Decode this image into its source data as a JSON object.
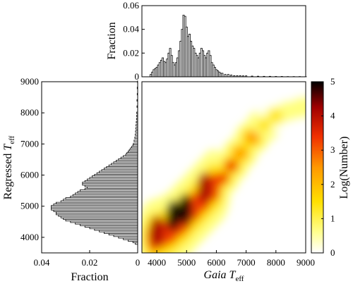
{
  "chart_data": [
    {
      "type": "bar",
      "panel": "top-histogram",
      "ylabel": "Fraction",
      "xlim": [
        3500,
        9000
      ],
      "ylim": [
        0,
        0.06
      ],
      "yticks": [
        "0",
        "0.02",
        "0.04",
        "0.06"
      ],
      "bin_width": 50,
      "x": [
        3800,
        3850,
        3900,
        3950,
        4000,
        4050,
        4100,
        4150,
        4200,
        4250,
        4300,
        4350,
        4400,
        4450,
        4500,
        4550,
        4600,
        4650,
        4700,
        4750,
        4800,
        4850,
        4900,
        4950,
        5000,
        5050,
        5100,
        5150,
        5200,
        5250,
        5300,
        5350,
        5400,
        5450,
        5500,
        5550,
        5600,
        5650,
        5700,
        5750,
        5800,
        5850,
        5900,
        5950,
        6000,
        6050,
        6100,
        6150,
        6200,
        6300,
        6400,
        6500,
        6600,
        6700,
        6800,
        6900,
        7000,
        7200,
        7400,
        7600,
        7800,
        8000,
        8200,
        8400,
        8600,
        8800,
        9000
      ],
      "values": [
        0.002,
        0.004,
        0.006,
        0.007,
        0.008,
        0.01,
        0.012,
        0.014,
        0.016,
        0.013,
        0.012,
        0.015,
        0.02,
        0.024,
        0.018,
        0.012,
        0.01,
        0.012,
        0.016,
        0.022,
        0.03,
        0.04,
        0.052,
        0.051,
        0.042,
        0.034,
        0.036,
        0.03,
        0.026,
        0.024,
        0.02,
        0.018,
        0.016,
        0.02,
        0.024,
        0.022,
        0.018,
        0.016,
        0.02,
        0.022,
        0.018,
        0.012,
        0.01,
        0.008,
        0.006,
        0.005,
        0.004,
        0.003,
        0.003,
        0.002,
        0.002,
        0.0015,
        0.001,
        0.001,
        0.001,
        0.0008,
        0.0008,
        0.0006,
        0.0005,
        0.0004,
        0.0004,
        0.0003,
        0.0003,
        0.0002,
        0.0002,
        0.0002,
        0.0001
      ]
    },
    {
      "type": "bar",
      "orientation": "horizontal",
      "panel": "left-histogram",
      "xlabel": "Fraction",
      "ylabel": "Regressed T_eff",
      "xlim": [
        0.04,
        0
      ],
      "ylim": [
        3500,
        9000
      ],
      "xticks": [
        "0.04",
        "0.02",
        "0"
      ],
      "bin_width": 50,
      "y": [
        3800,
        3850,
        3900,
        3950,
        4000,
        4050,
        4100,
        4150,
        4200,
        4250,
        4300,
        4350,
        4400,
        4450,
        4500,
        4550,
        4600,
        4650,
        4700,
        4750,
        4800,
        4850,
        4900,
        4950,
        5000,
        5050,
        5100,
        5150,
        5200,
        5250,
        5300,
        5350,
        5400,
        5450,
        5500,
        5550,
        5600,
        5650,
        5700,
        5750,
        5800,
        5850,
        5900,
        5950,
        6000,
        6050,
        6100,
        6150,
        6200,
        6250,
        6300,
        6350,
        6400,
        6450,
        6500,
        6550,
        6600,
        6650,
        6700,
        6750,
        6800,
        6850,
        6900,
        6950,
        7000,
        7100,
        7200,
        7300,
        7400,
        7500,
        7600,
        7700,
        7800,
        7900,
        8000,
        8200,
        8400,
        8600,
        8800,
        9000
      ],
      "values": [
        0.001,
        0.002,
        0.004,
        0.006,
        0.008,
        0.01,
        0.012,
        0.014,
        0.016,
        0.018,
        0.02,
        0.022,
        0.024,
        0.026,
        0.028,
        0.03,
        0.031,
        0.032,
        0.033,
        0.034,
        0.034,
        0.035,
        0.036,
        0.036,
        0.036,
        0.035,
        0.034,
        0.032,
        0.031,
        0.03,
        0.028,
        0.027,
        0.026,
        0.025,
        0.024,
        0.022,
        0.021,
        0.022,
        0.023,
        0.023,
        0.022,
        0.021,
        0.02,
        0.019,
        0.018,
        0.017,
        0.016,
        0.015,
        0.014,
        0.013,
        0.012,
        0.011,
        0.01,
        0.009,
        0.008,
        0.007,
        0.006,
        0.005,
        0.0045,
        0.004,
        0.0035,
        0.003,
        0.0025,
        0.002,
        0.0018,
        0.0015,
        0.0012,
        0.001,
        0.0009,
        0.0008,
        0.0007,
        0.0006,
        0.0005,
        0.0004,
        0.0004,
        0.0003,
        0.0003,
        0.0002,
        0.0002,
        0.0001
      ]
    },
    {
      "type": "heatmap",
      "panel": "main-density",
      "xlabel": "Gaia T_eff",
      "ylabel": "Regressed T_eff",
      "xlim": [
        3500,
        9000
      ],
      "ylim": [
        3500,
        9000
      ],
      "xticks": [
        "4000",
        "5000",
        "6000",
        "7000",
        "8000",
        "9000"
      ],
      "yticks": [
        "4000",
        "5000",
        "6000",
        "7000",
        "8000",
        "9000"
      ],
      "colorbar": {
        "label": "Log(Number)",
        "range": [
          0,
          5
        ],
        "ticks": [
          "0",
          "1",
          "2",
          "3",
          "4",
          "5"
        ],
        "colormap": "hot-reversed",
        "colors": [
          "#ffffff",
          "#ffff80",
          "#ffe000",
          "#ff9800",
          "#f03000",
          "#a00000",
          "#000000"
        ]
      },
      "ridge": {
        "description_points_x": [
          3900,
          4200,
          4500,
          4800,
          5000,
          5300,
          5600,
          5900,
          6200,
          6500,
          6800,
          7200,
          7600,
          8000,
          8400,
          8800,
          9000
        ],
        "description_points_y": [
          4000,
          4100,
          4250,
          4500,
          4700,
          5000,
          5300,
          5600,
          5900,
          6300,
          6700,
          7200,
          7600,
          7900,
          8050,
          8150,
          8200
        ]
      },
      "peaks": [
        {
          "x": 4550,
          "y": 4700,
          "level": 4.6
        },
        {
          "x": 4950,
          "y": 4900,
          "level": 5.0
        },
        {
          "x": 5600,
          "y": 5600,
          "level": 4.3
        },
        {
          "x": 4000,
          "y": 4200,
          "level": 3.8
        }
      ]
    }
  ]
}
